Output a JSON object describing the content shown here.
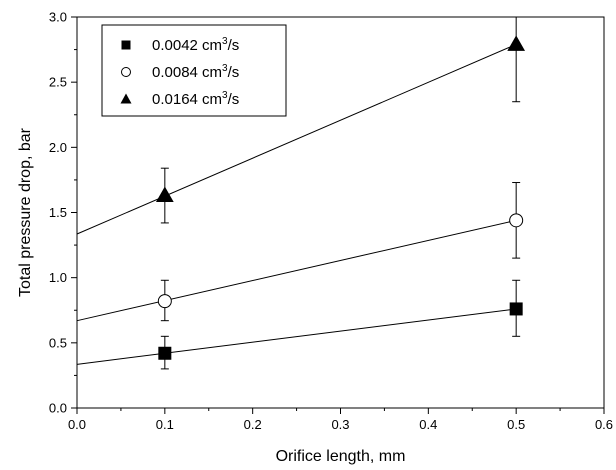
{
  "chart_data": {
    "type": "scatter",
    "title": "",
    "xlabel": "Orifice length, mm",
    "ylabel": "Total pressure drop, bar",
    "xlim": [
      0.0,
      0.6
    ],
    "ylim": [
      0.0,
      3.0
    ],
    "x_ticks": [
      "0.0",
      "0.1",
      "0.2",
      "0.3",
      "0.4",
      "0.5",
      "0.6"
    ],
    "y_ticks": [
      "0.0",
      "0.5",
      "1.0",
      "1.5",
      "2.0",
      "2.5",
      "3.0"
    ],
    "grid": false,
    "legend_position": "top-left",
    "series": [
      {
        "name_value": "0.0042 cm",
        "name_exponent": "3",
        "name_suffix": "/s",
        "marker": "filled-square",
        "x": [
          0.1,
          0.5
        ],
        "y": [
          0.42,
          0.76
        ],
        "y_err_low": [
          0.3,
          0.55
        ],
        "y_err_high": [
          0.55,
          0.98
        ],
        "fit_line": {
          "x": [
            0.0,
            0.5
          ],
          "y": [
            0.335,
            0.76
          ]
        }
      },
      {
        "name_value": "0.0084 cm",
        "name_exponent": "3",
        "name_suffix": "/s",
        "marker": "open-circle",
        "x": [
          0.1,
          0.5
        ],
        "y": [
          0.82,
          1.44
        ],
        "y_err_low": [
          0.67,
          1.15
        ],
        "y_err_high": [
          0.98,
          1.73
        ],
        "fit_line": {
          "x": [
            0.0,
            0.5
          ],
          "y": [
            0.67,
            1.44
          ]
        }
      },
      {
        "name_value": "0.0164 cm",
        "name_exponent": "3",
        "name_suffix": "/s",
        "marker": "filled-triangle",
        "x": [
          0.1,
          0.5
        ],
        "y": [
          1.63,
          2.79
        ],
        "y_err_low": [
          1.42,
          2.35
        ],
        "y_err_high": [
          1.84,
          3.0
        ],
        "fit_line": {
          "x": [
            0.0,
            0.5
          ],
          "y": [
            1.335,
            2.79
          ]
        }
      }
    ]
  }
}
